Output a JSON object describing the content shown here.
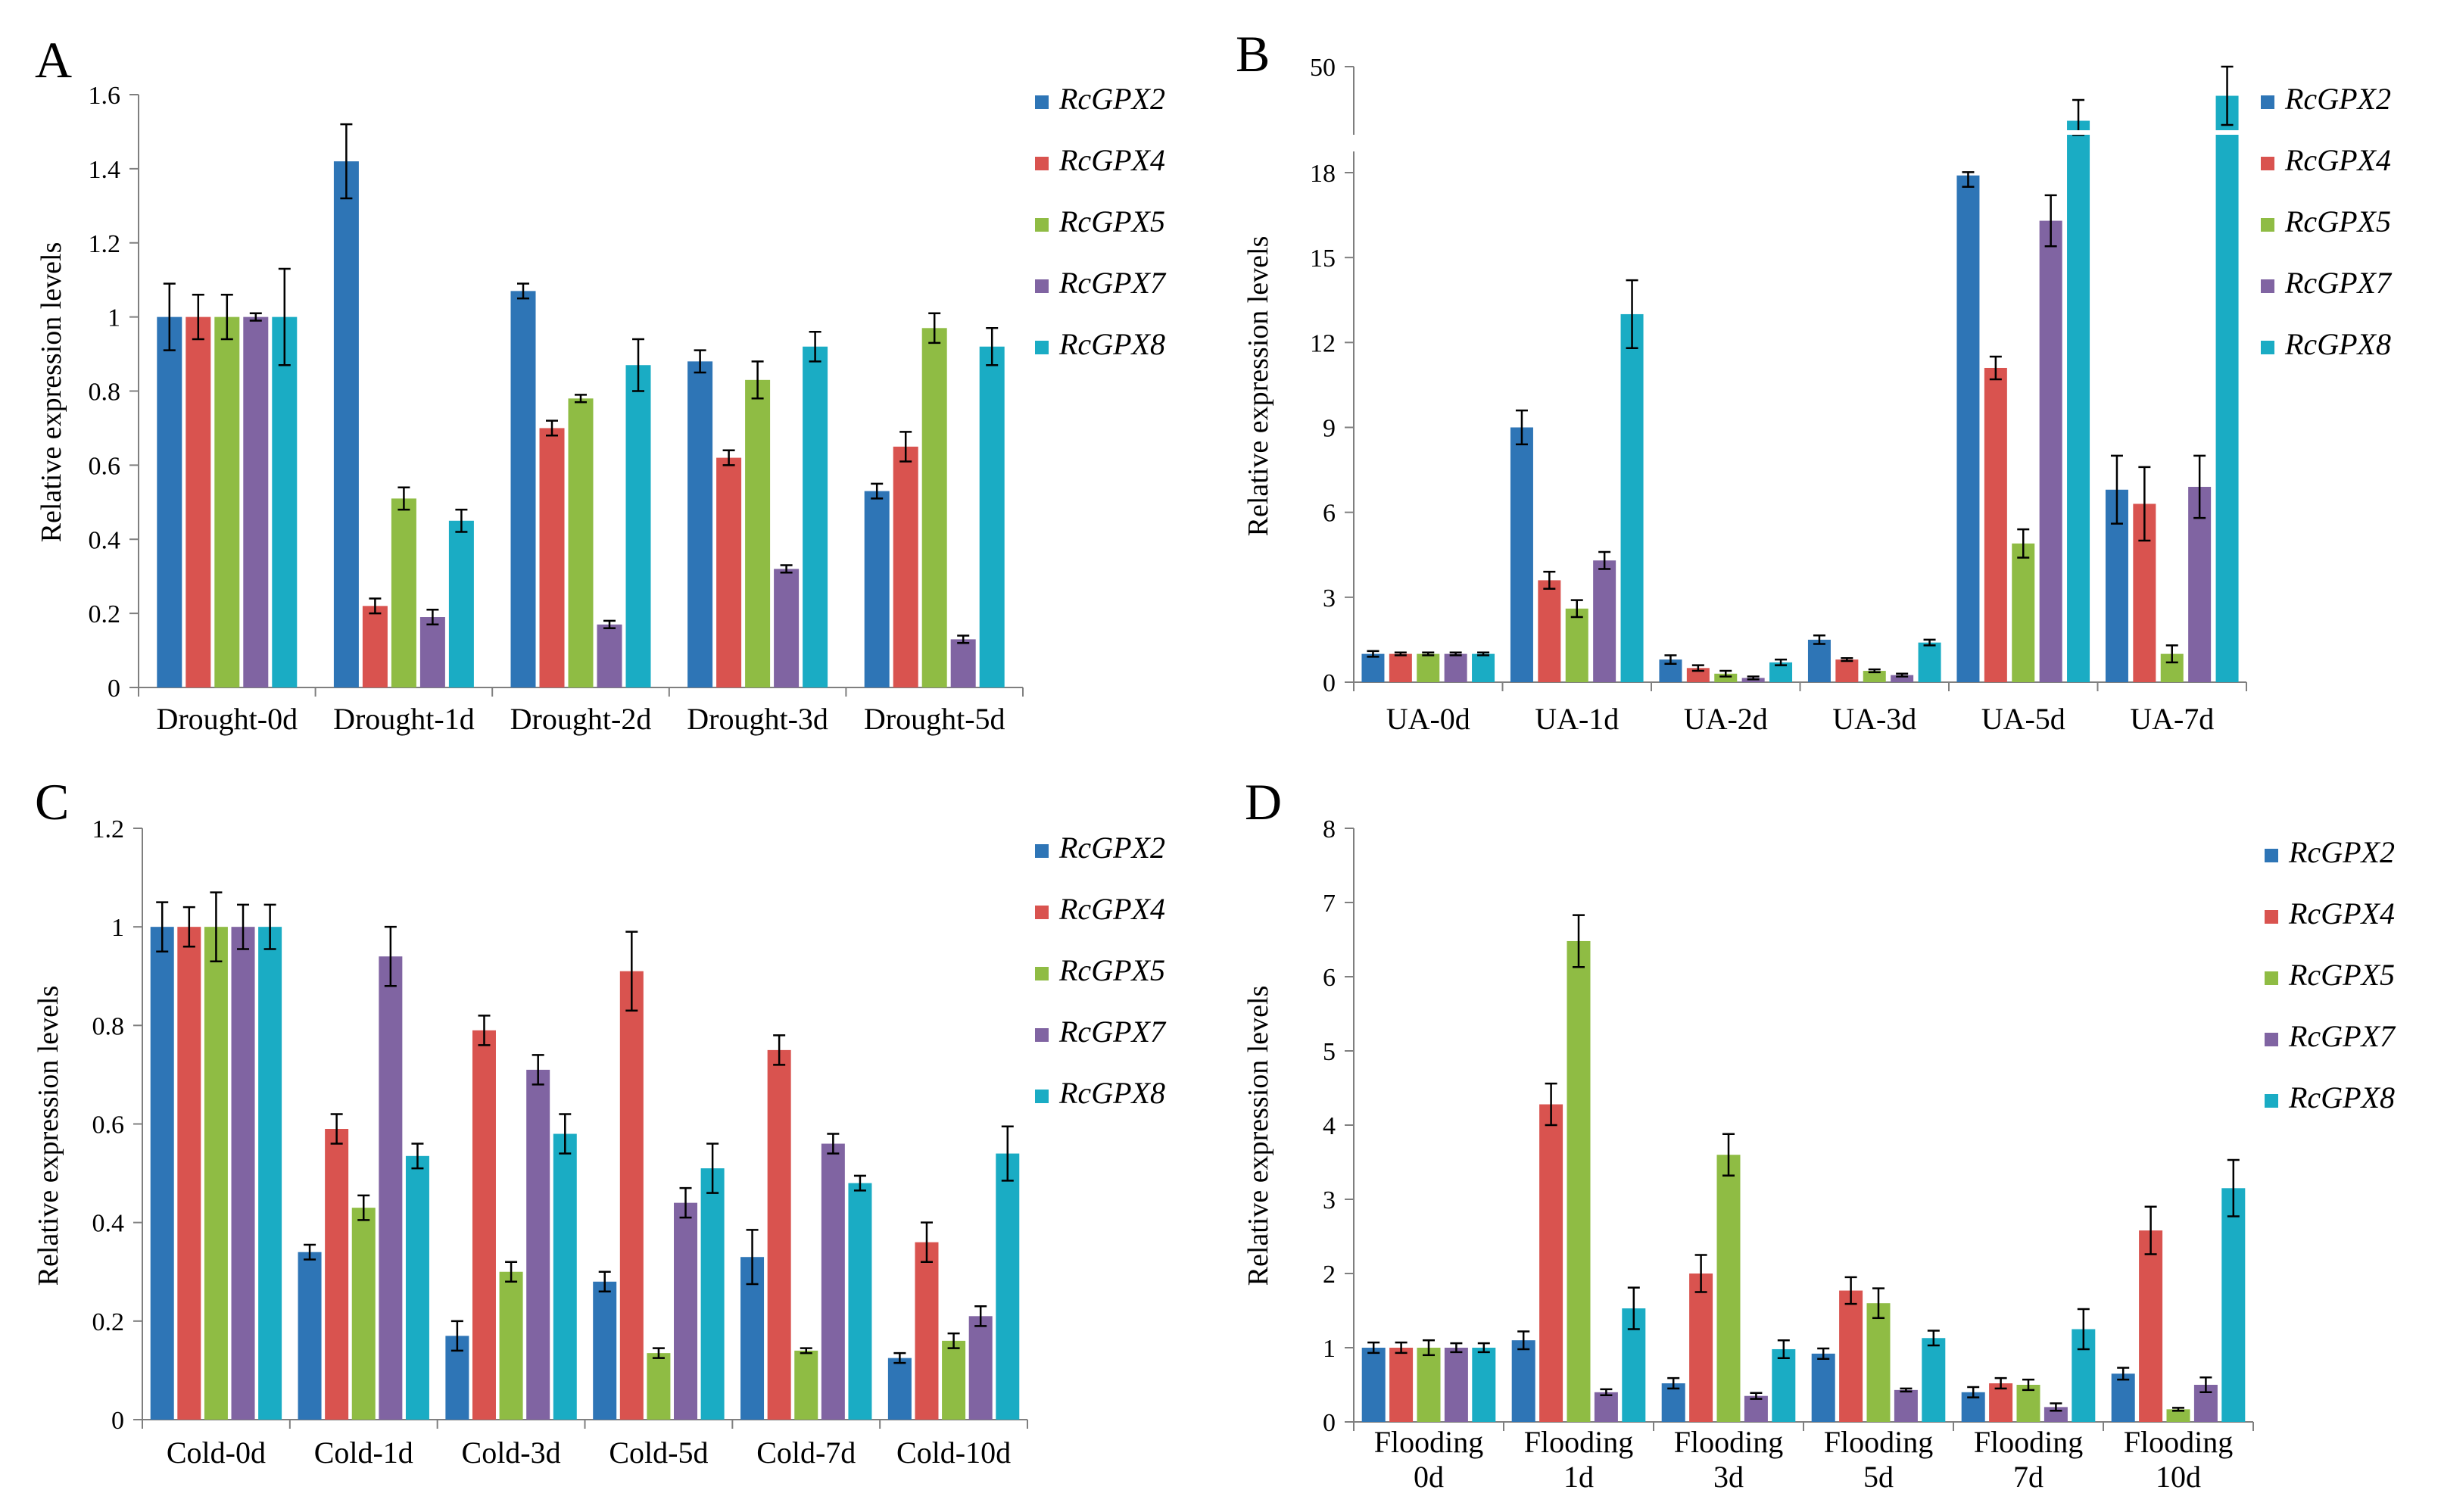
{
  "figure": {
    "series_colors": {
      "RcGPX2": "#2e75b6",
      "RcGPX4": "#d9534f",
      "RcGPX5": "#8fbc44",
      "RcGPX7": "#8064a2",
      "RcGPX8": "#1aacc4"
    },
    "axis_color": "#7f7f7f"
  },
  "chart_data": [
    {
      "panel": "A",
      "type": "bar",
      "title": "",
      "xlabel": "",
      "ylabel": "Relative expression levels",
      "ylim": [
        0,
        1.6
      ],
      "yticks": [
        0,
        0.2,
        0.4,
        0.6,
        0.8,
        1,
        1.2,
        1.4,
        1.6
      ],
      "ytick_labels": [
        "0",
        "0.2",
        "0.4",
        "0.6",
        "0.8",
        "1",
        "1.2",
        "1.4",
        "1.6"
      ],
      "legend_position": "top-right",
      "categories": [
        "Drought-0d",
        "Drought-1d",
        "Drought-2d",
        "Drought-3d",
        "Drought-5d"
      ],
      "series": [
        {
          "name": "RcGPX2",
          "values": [
            1.0,
            1.42,
            1.07,
            0.88,
            0.53
          ],
          "errors": [
            0.09,
            0.1,
            0.02,
            0.03,
            0.02
          ]
        },
        {
          "name": "RcGPX4",
          "values": [
            1.0,
            0.22,
            0.7,
            0.62,
            0.65
          ],
          "errors": [
            0.06,
            0.02,
            0.02,
            0.02,
            0.04
          ]
        },
        {
          "name": "RcGPX5",
          "values": [
            1.0,
            0.51,
            0.78,
            0.83,
            0.97
          ],
          "errors": [
            0.06,
            0.03,
            0.01,
            0.05,
            0.04
          ]
        },
        {
          "name": "RcGPX7",
          "values": [
            1.0,
            0.19,
            0.17,
            0.32,
            0.13
          ],
          "errors": [
            0.01,
            0.02,
            0.01,
            0.01,
            0.01
          ]
        },
        {
          "name": "RcGPX8",
          "values": [
            1.0,
            0.45,
            0.87,
            0.92,
            0.92
          ],
          "errors": [
            0.13,
            0.03,
            0.07,
            0.04,
            0.05
          ]
        }
      ]
    },
    {
      "panel": "B",
      "type": "bar",
      "title": "",
      "xlabel": "",
      "ylabel": "Relative expression levels",
      "ylim": [
        0,
        50
      ],
      "axis_break": "between 18 and 50",
      "yticks": [
        0,
        3,
        6,
        9,
        12,
        15,
        18,
        50
      ],
      "ytick_labels": [
        "0",
        "3",
        "6",
        "9",
        "12",
        "15",
        "18",
        "50"
      ],
      "legend_position": "top-right",
      "categories": [
        "UA-0d",
        "UA-1d",
        "UA-2d",
        "UA-3d",
        "UA-5d",
        "UA-7d"
      ],
      "series": [
        {
          "name": "RcGPX2",
          "values": [
            1.0,
            9.0,
            0.8,
            1.5,
            17.9,
            6.8
          ],
          "errors": [
            0.1,
            0.6,
            0.15,
            0.15,
            0.4,
            1.2
          ]
        },
        {
          "name": "RcGPX4",
          "values": [
            1.0,
            3.6,
            0.5,
            0.8,
            11.1,
            6.3
          ],
          "errors": [
            0.05,
            0.3,
            0.1,
            0.05,
            0.4,
            1.3
          ]
        },
        {
          "name": "RcGPX5",
          "values": [
            1.0,
            2.6,
            0.3,
            0.4,
            4.9,
            1.0
          ],
          "errors": [
            0.05,
            0.3,
            0.1,
            0.05,
            0.5,
            0.3
          ]
        },
        {
          "name": "RcGPX7",
          "values": [
            1.0,
            4.3,
            0.15,
            0.25,
            16.3,
            6.9
          ],
          "errors": [
            0.05,
            0.3,
            0.05,
            0.05,
            0.9,
            1.1
          ]
        },
        {
          "name": "RcGPX8",
          "values": [
            1.0,
            13.0,
            0.7,
            1.4,
            43.5,
            46.5
          ],
          "errors": [
            0.05,
            1.2,
            0.1,
            0.1,
            2.5,
            3.5
          ]
        }
      ]
    },
    {
      "panel": "C",
      "type": "bar",
      "title": "",
      "xlabel": "",
      "ylabel": "Relative expression levels",
      "ylim": [
        0,
        1.2
      ],
      "yticks": [
        0,
        0.2,
        0.4,
        0.6,
        0.8,
        1,
        1.2
      ],
      "ytick_labels": [
        "0",
        "0.2",
        "0.4",
        "0.6",
        "0.8",
        "1",
        "1.2"
      ],
      "legend_position": "top-right",
      "categories": [
        "Cold-0d",
        "Cold-1d",
        "Cold-3d",
        "Cold-5d",
        "Cold-7d",
        "Cold-10d"
      ],
      "series": [
        {
          "name": "RcGPX2",
          "values": [
            1.0,
            0.34,
            0.17,
            0.28,
            0.33,
            0.125
          ],
          "errors": [
            0.05,
            0.015,
            0.03,
            0.02,
            0.055,
            0.01
          ]
        },
        {
          "name": "RcGPX4",
          "values": [
            1.0,
            0.59,
            0.79,
            0.91,
            0.75,
            0.36
          ],
          "errors": [
            0.04,
            0.03,
            0.03,
            0.08,
            0.03,
            0.04
          ]
        },
        {
          "name": "RcGPX5",
          "values": [
            1.0,
            0.43,
            0.3,
            0.135,
            0.14,
            0.16
          ],
          "errors": [
            0.07,
            0.025,
            0.02,
            0.01,
            0.005,
            0.015
          ]
        },
        {
          "name": "RcGPX7",
          "values": [
            1.0,
            0.94,
            0.71,
            0.44,
            0.56,
            0.21
          ],
          "errors": [
            0.045,
            0.06,
            0.03,
            0.03,
            0.02,
            0.02
          ]
        },
        {
          "name": "RcGPX8",
          "values": [
            1.0,
            0.535,
            0.58,
            0.51,
            0.48,
            0.54
          ],
          "errors": [
            0.045,
            0.025,
            0.04,
            0.05,
            0.015,
            0.055
          ]
        }
      ]
    },
    {
      "panel": "D",
      "type": "bar",
      "title": "",
      "xlabel": "",
      "ylabel": "Relative expression levels",
      "ylim": [
        0,
        8
      ],
      "yticks": [
        0,
        1,
        2,
        3,
        4,
        5,
        6,
        7,
        8
      ],
      "ytick_labels": [
        "0",
        "1",
        "2",
        "3",
        "4",
        "5",
        "6",
        "7",
        "8"
      ],
      "legend_position": "top-right",
      "categories": [
        "Flooding\n0d",
        "Flooding\n1d",
        "Flooding\n3d",
        "Flooding\n5d",
        "Flooding\n7d",
        "Flooding\n10d"
      ],
      "series": [
        {
          "name": "RcGPX2",
          "values": [
            1.0,
            1.1,
            0.52,
            0.92,
            0.4,
            0.65
          ],
          "errors": [
            0.07,
            0.12,
            0.07,
            0.07,
            0.07,
            0.08
          ]
        },
        {
          "name": "RcGPX4",
          "values": [
            1.0,
            4.28,
            2.0,
            1.77,
            0.52,
            2.58
          ],
          "errors": [
            0.07,
            0.28,
            0.25,
            0.18,
            0.07,
            0.32
          ]
        },
        {
          "name": "RcGPX5",
          "values": [
            1.0,
            6.48,
            3.6,
            1.6,
            0.5,
            0.17
          ],
          "errors": [
            0.1,
            0.35,
            0.28,
            0.2,
            0.07,
            0.02
          ]
        },
        {
          "name": "RcGPX7",
          "values": [
            1.0,
            0.4,
            0.35,
            0.43,
            0.2,
            0.5
          ],
          "errors": [
            0.06,
            0.04,
            0.04,
            0.02,
            0.05,
            0.1
          ]
        },
        {
          "name": "RcGPX8",
          "values": [
            1.0,
            1.53,
            0.98,
            1.13,
            1.25,
            3.15
          ],
          "errors": [
            0.06,
            0.28,
            0.12,
            0.1,
            0.27,
            0.38
          ]
        }
      ]
    }
  ]
}
